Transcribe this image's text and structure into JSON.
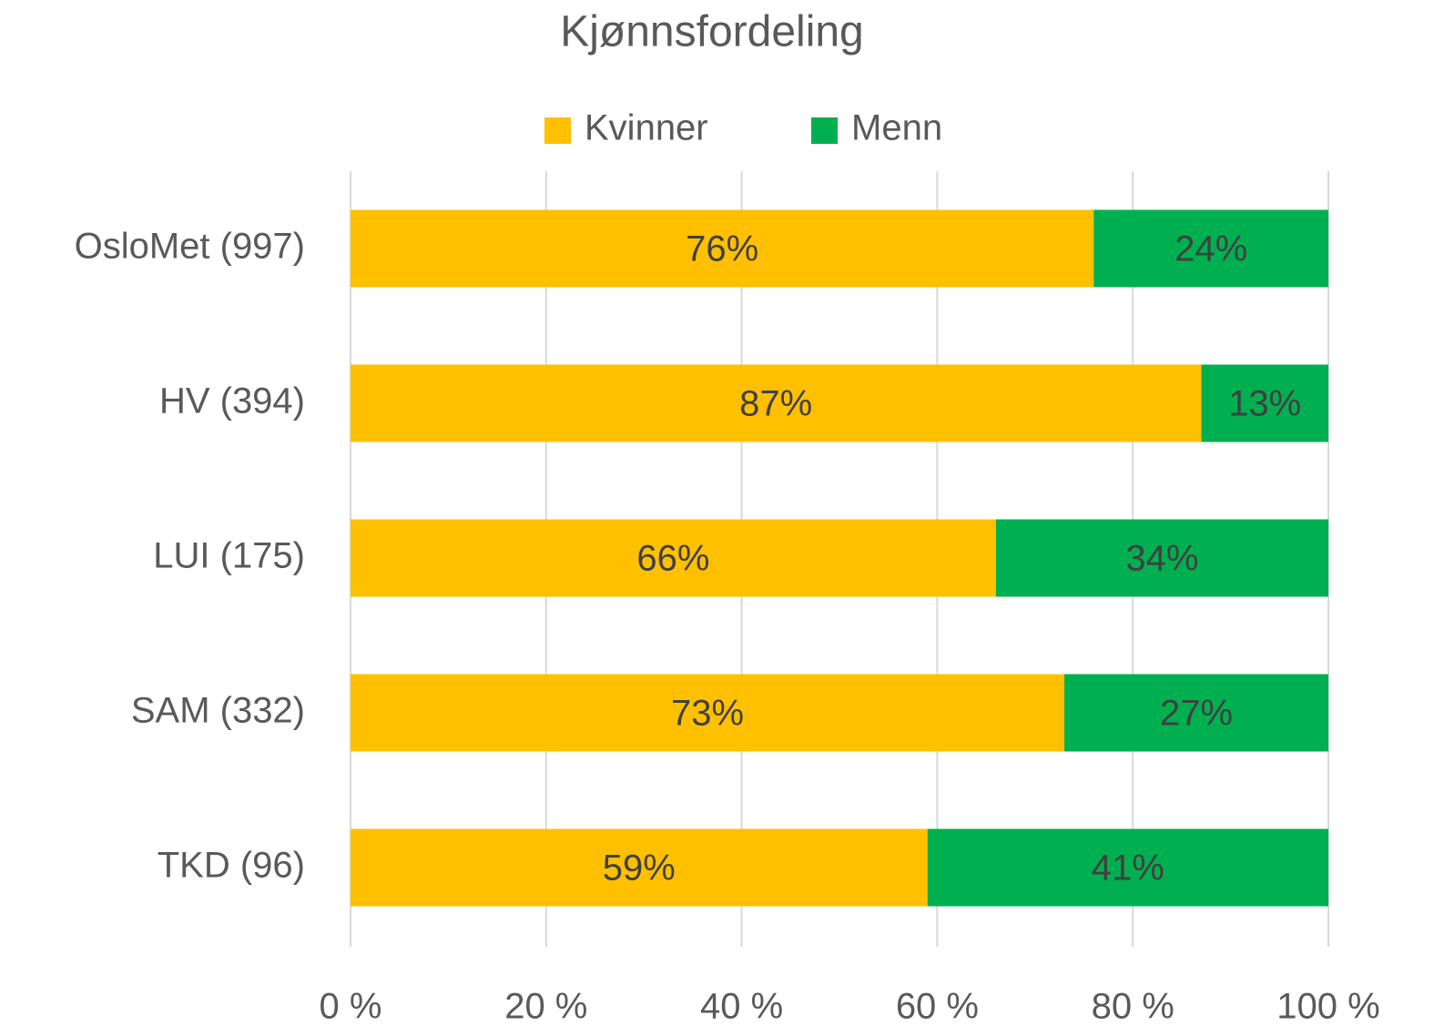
{
  "chart_data": {
    "type": "stacked_bar_horizontal",
    "title": "Kjønnsfordeling",
    "categories": [
      "OsloMet (997)",
      "HV (394)",
      "LUI (175)",
      "SAM (332)",
      "TKD (96)"
    ],
    "series": [
      {
        "name": "Kvinner",
        "color": "#FFC000",
        "values": [
          76,
          87,
          66,
          73,
          59
        ],
        "value_labels": [
          "76%",
          "87%",
          "66%",
          "73%",
          "59%"
        ]
      },
      {
        "name": "Menn",
        "color": "#00B050",
        "values": [
          24,
          13,
          34,
          27,
          41
        ],
        "value_labels": [
          "24%",
          "13%",
          "34%",
          "27%",
          "41%"
        ]
      }
    ],
    "xlim": [
      0,
      100
    ],
    "xticks": [
      {
        "value": 0,
        "label": "0 %"
      },
      {
        "value": 20,
        "label": "20 %"
      },
      {
        "value": 40,
        "label": "40 %"
      },
      {
        "value": 60,
        "label": "60 %"
      },
      {
        "value": 80,
        "label": "80 %"
      },
      {
        "value": 100,
        "label": "100 %"
      }
    ],
    "grid": true,
    "legend": "top"
  }
}
